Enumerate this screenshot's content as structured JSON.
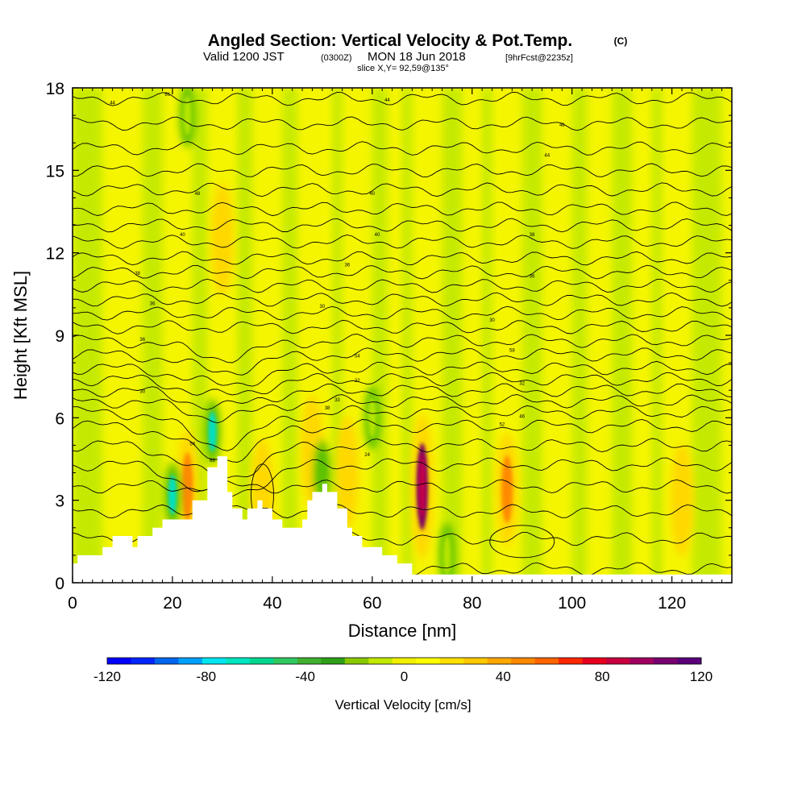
{
  "header": {
    "title": "Angled Section: Vertical Velocity & Pot.Temp.",
    "copyright": "(C)",
    "valid_prefix": "Valid 1200 JST",
    "valid_zulu": "(0300Z)",
    "valid_date": "MON 18 Jun 2018",
    "forecast": "[9hrFcst@2235z]",
    "slice": "slice X,Y= 92,59@135°"
  },
  "colors": {
    "background_field": "#f5f500",
    "positive_light": "#ffd800",
    "positive_strong": "#ff8a00",
    "positive_peak": "#7a0060",
    "negative_light": "#b6e600",
    "negative_mid": "#5ec200",
    "negative_strong": "#00e0c8",
    "terrain": "#ffffff",
    "contour": "#000000"
  },
  "chart_data": {
    "type": "heatmap",
    "title": "Angled Section: Vertical Velocity & Pot.Temp.",
    "xlabel": "Distance [nm]",
    "ylabel": "Height [Kft MSL]",
    "xlim": [
      0,
      132
    ],
    "ylim": [
      0,
      18
    ],
    "x_ticks": [
      "0",
      "20",
      "40",
      "60",
      "80",
      "100",
      "120"
    ],
    "y_ticks": [
      "0",
      "3",
      "6",
      "9",
      "12",
      "15",
      "18"
    ],
    "colorbar": {
      "label": "Vertical Velocity [cm/s]",
      "range": [
        -120,
        120
      ],
      "tick_labels": [
        "-120",
        "-80",
        "-40",
        "0",
        "40",
        "80",
        "120"
      ],
      "colors": [
        "#0000ff",
        "#0026ff",
        "#0066ee",
        "#00a0ff",
        "#00e6f0",
        "#00e6c0",
        "#00d890",
        "#30c860",
        "#40b030",
        "#2ea018",
        "#8ac800",
        "#c0e800",
        "#f0f000",
        "#ffff00",
        "#ffe000",
        "#ffc800",
        "#ffa800",
        "#ff8800",
        "#ff6400",
        "#ff2800",
        "#e8001c",
        "#c80040",
        "#a00060",
        "#780070",
        "#5a007a"
      ]
    },
    "terrain_profile": [
      [
        0,
        0.7
      ],
      [
        1,
        0.7
      ],
      [
        1,
        1
      ],
      [
        2,
        1
      ],
      [
        2,
        1
      ],
      [
        6,
        1
      ],
      [
        6,
        1.3
      ],
      [
        8,
        1.3
      ],
      [
        8,
        1.7
      ],
      [
        12,
        1.7
      ],
      [
        12,
        1.3
      ],
      [
        13,
        1.3
      ],
      [
        13,
        1.7
      ],
      [
        16,
        1.7
      ],
      [
        16,
        2
      ],
      [
        18,
        2
      ],
      [
        18,
        2.3
      ],
      [
        24,
        2.3
      ],
      [
        24,
        3
      ],
      [
        27,
        3
      ],
      [
        27,
        4.2
      ],
      [
        29,
        4.2
      ],
      [
        29,
        4.6
      ],
      [
        31,
        4.6
      ],
      [
        31,
        3.3
      ],
      [
        32,
        3.3
      ],
      [
        32,
        2.7
      ],
      [
        34,
        2.7
      ],
      [
        34,
        2.3
      ],
      [
        35,
        2.3
      ],
      [
        35,
        2.7
      ],
      [
        37,
        2.7
      ],
      [
        37,
        3
      ],
      [
        38,
        3
      ],
      [
        38,
        2.7
      ],
      [
        40,
        2.7
      ],
      [
        40,
        2.3
      ],
      [
        42,
        2.3
      ],
      [
        42,
        2
      ],
      [
        46,
        2
      ],
      [
        46,
        2.3
      ],
      [
        47,
        2.3
      ],
      [
        47,
        3
      ],
      [
        48,
        3
      ],
      [
        48,
        3.3
      ],
      [
        50,
        3.3
      ],
      [
        50,
        3.6
      ],
      [
        51,
        3.6
      ],
      [
        51,
        3.3
      ],
      [
        53,
        3.3
      ],
      [
        53,
        2.7
      ],
      [
        55,
        2.7
      ],
      [
        55,
        2
      ],
      [
        56,
        2
      ],
      [
        56,
        1.7
      ],
      [
        58,
        1.7
      ],
      [
        58,
        1.3
      ],
      [
        62,
        1.3
      ],
      [
        62,
        1
      ],
      [
        65,
        1
      ],
      [
        65,
        0.7
      ],
      [
        68,
        0.7
      ],
      [
        68,
        0.3
      ],
      [
        132,
        0.3
      ]
    ],
    "updrafts": [
      {
        "x": 23,
        "z": 3.5,
        "peak_cm_s": 70
      },
      {
        "x": 30,
        "z": 12.5,
        "peak_cm_s": 30
      },
      {
        "x": 38,
        "z": 3.2,
        "peak_cm_s": 35
      },
      {
        "x": 48,
        "z": 4.8,
        "peak_cm_s": 40
      },
      {
        "x": 55,
        "z": 4.0,
        "peak_cm_s": 45
      },
      {
        "x": 70,
        "z": 3.5,
        "peak_cm_s": 120
      },
      {
        "x": 87,
        "z": 3.4,
        "peak_cm_s": 60
      },
      {
        "x": 122,
        "z": 3.0,
        "peak_cm_s": 30
      }
    ],
    "downdrafts": [
      {
        "x": 20,
        "z": 3.2,
        "peak_cm_s": -80
      },
      {
        "x": 28,
        "z": 5.5,
        "peak_cm_s": -60
      },
      {
        "x": 50,
        "z": 4.0,
        "peak_cm_s": -50
      },
      {
        "x": 23,
        "z": 17,
        "peak_cm_s": -30
      },
      {
        "x": 60,
        "z": 6.0,
        "peak_cm_s": -25
      },
      {
        "x": 75,
        "z": 1.0,
        "peak_cm_s": -20
      }
    ],
    "theta_contours_pressure_levels": [
      0.5,
      1.6,
      2.6,
      3.5,
      4.3,
      5.0,
      5.7,
      6.2,
      6.6,
      7.0,
      7.4,
      7.8,
      8.3,
      8.8,
      9.3,
      9.8,
      10.3,
      10.8,
      11.3,
      11.8,
      12.4,
      13.0,
      13.6,
      14.3,
      15.0,
      15.8,
      16.7,
      17.6
    ],
    "contour_labels": [
      "44",
      "66",
      "44",
      "44",
      "46",
      "48",
      "40",
      "40",
      "40",
      "38",
      "38",
      "36",
      "36",
      "36",
      "30",
      "30",
      "36",
      "54",
      "58",
      "30",
      "22",
      "32",
      "33",
      "38",
      "46",
      "52",
      "54",
      "66",
      "24"
    ]
  }
}
